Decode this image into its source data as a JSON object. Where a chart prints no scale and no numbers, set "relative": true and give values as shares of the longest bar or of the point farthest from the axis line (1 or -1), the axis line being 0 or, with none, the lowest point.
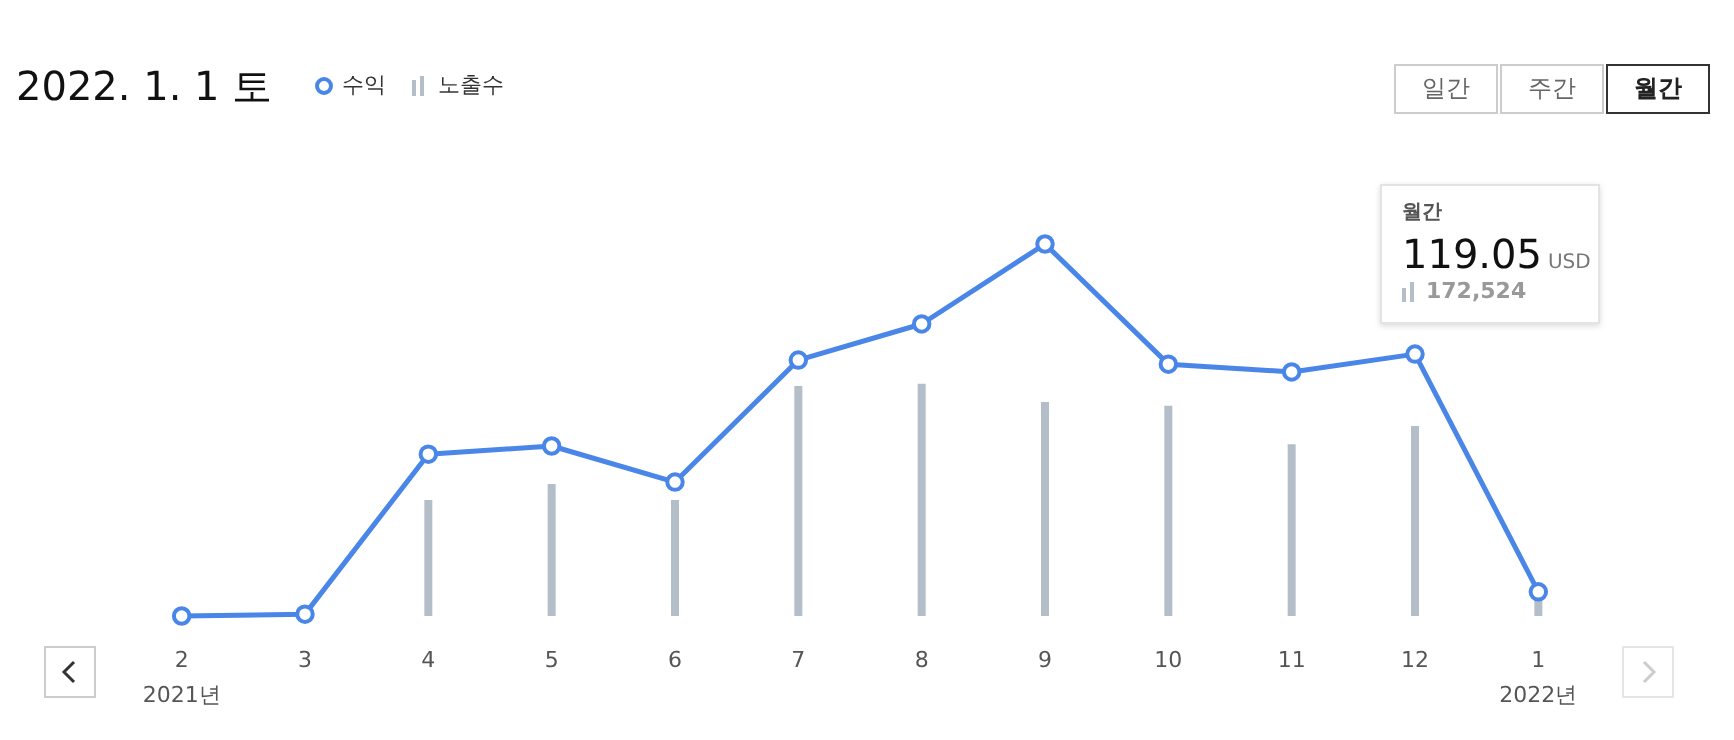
{
  "chart_data": {
    "type": "line",
    "title": "2022. 1. 1 토",
    "relative": true,
    "legend": "top",
    "marker": "circle",
    "categories": [
      "2",
      "3",
      "4",
      "5",
      "6",
      "7",
      "8",
      "9",
      "10",
      "11",
      "12",
      "1"
    ],
    "series": [
      {
        "name": "수익",
        "color": "#4a86e8",
        "values": [
          0,
          0.005,
          0.435,
          0.457,
          0.36,
          0.688,
          0.785,
          1,
          0.677,
          0.656,
          0.704,
          0.065
        ]
      },
      {
        "name": "노출수",
        "type": "bar",
        "color": "#b4bec8",
        "values": [
          0,
          0,
          0.312,
          0.355,
          0.312,
          0.618,
          0.624,
          0.575,
          0.565,
          0.462,
          0.511,
          0.048
        ]
      }
    ],
    "annotations": [
      "2021년",
      "2022년",
      "월간",
      "119.05",
      "USD",
      "172,524",
      "일간",
      "주간",
      "월간"
    ]
  }
}
